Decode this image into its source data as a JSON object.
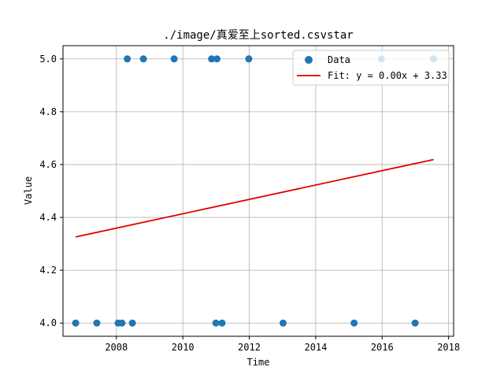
{
  "chart_data": {
    "type": "scatter",
    "title": "./image/真爱至上sorted.csvstar",
    "xlabel": "Time",
    "ylabel": "Value",
    "x_is_date": true,
    "xlim": [
      "2006-05-24",
      "2018-02-25"
    ],
    "ylim": [
      3.95,
      5.05
    ],
    "x_ticks": [
      "2008",
      "2010",
      "2012",
      "2014",
      "2016",
      "2018"
    ],
    "y_ticks": [
      "4.0",
      "4.2",
      "4.4",
      "4.6",
      "4.8",
      "5.0"
    ],
    "grid": true,
    "legend_position": "top-right",
    "colors": {
      "data": "#1f77b4",
      "fit": "#e00000"
    },
    "series": [
      {
        "name": "Data",
        "kind": "scatter",
        "points": [
          {
            "x": "2006-10-10",
            "y": 4.0
          },
          {
            "x": "2007-05-31",
            "y": 4.0
          },
          {
            "x": "2008-01-20",
            "y": 4.0
          },
          {
            "x": "2008-03-02",
            "y": 4.0
          },
          {
            "x": "2008-04-30",
            "y": 5.0
          },
          {
            "x": "2008-06-25",
            "y": 4.0
          },
          {
            "x": "2008-10-24",
            "y": 5.0
          },
          {
            "x": "2009-09-27",
            "y": 5.0
          },
          {
            "x": "2010-11-13",
            "y": 5.0
          },
          {
            "x": "2010-12-30",
            "y": 4.0
          },
          {
            "x": "2011-01-11",
            "y": 5.0
          },
          {
            "x": "2011-03-08",
            "y": 4.0
          },
          {
            "x": "2011-12-27",
            "y": 5.0
          },
          {
            "x": "2013-01-07",
            "y": 4.0
          },
          {
            "x": "2015-02-27",
            "y": 4.0
          },
          {
            "x": "2015-12-25",
            "y": 5.0
          },
          {
            "x": "2016-12-29",
            "y": 4.0
          },
          {
            "x": "2017-07-20",
            "y": 5.0
          }
        ]
      },
      {
        "name": "Fit: y = 0.00x + 3.33",
        "kind": "line",
        "points": [
          {
            "x": "2006-10-10",
            "y": 4.326
          },
          {
            "x": "2017-07-20",
            "y": 4.619
          }
        ]
      }
    ]
  }
}
